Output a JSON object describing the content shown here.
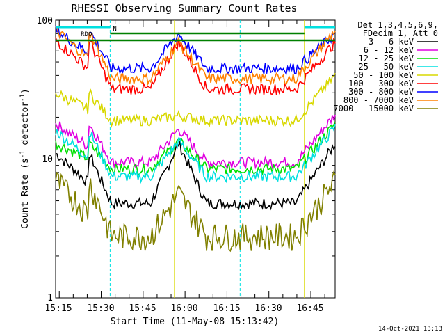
{
  "chart_data": {
    "type": "line",
    "title": "RHESSI Observing Summary Count Rates",
    "xlabel": "Start Time (11-May-08 15:13:42)",
    "ylabel_main": "Count Rate (s",
    "ylabel_sup1": "-1",
    "ylabel_mid": " detector",
    "ylabel_sup2": "-1",
    "ylabel_end": ")",
    "yscale": "log",
    "ylim": [
      1,
      100
    ],
    "xlim_minutes": [
      0,
      100
    ],
    "x_ticks": [
      "15:15",
      "15:30",
      "15:45",
      "16:00",
      "16:15",
      "16:30",
      "16:45"
    ],
    "y_ticks": [
      "1",
      "10",
      "100"
    ],
    "legend_header": [
      "Det 1,3,4,5,6,9,",
      "FDecim 1, Att 0"
    ],
    "legend_position": "right",
    "timestamp": "14-Oct-2021 13:13",
    "flags": {
      "night_label": "N",
      "rdo_label": "RDO"
    },
    "breaks_minutes": [
      19.5,
      42.5,
      66,
      89
    ],
    "series": [
      {
        "name": "3 - 6 keV",
        "color": "#000000",
        "values": [
          11,
          4.8,
          13,
          4.8,
          13
        ]
      },
      {
        "name": "6 - 12 keV",
        "color": "#e000e0",
        "values": [
          18,
          9.5,
          16.5,
          9.5,
          21
        ]
      },
      {
        "name": "12 - 25 keV",
        "color": "#00e000",
        "values": [
          13,
          8.5,
          13.5,
          8.5,
          18
        ]
      },
      {
        "name": "25 - 50 keV",
        "color": "#00e0e0",
        "values": [
          16,
          7.5,
          13.5,
          7.5,
          17
        ]
      },
      {
        "name": "50 - 100 keV",
        "color": "#d8d800",
        "values": [
          30,
          19,
          20.5,
          19,
          40
        ]
      },
      {
        "name": "100 - 300 keV",
        "color": "#ff0000",
        "values": [
          72,
          32,
          70,
          32,
          70
        ]
      },
      {
        "name": "300 - 800 keV",
        "color": "#0000ff",
        "values": [
          85,
          45,
          80,
          45,
          80
        ]
      },
      {
        "name": "800 - 7000 keV",
        "color": "#ff8000",
        "values": [
          85,
          38,
          70,
          38,
          85
        ]
      },
      {
        "name": "7000 - 15000 keV",
        "color": "#808000",
        "values": [
          7,
          2.8,
          5.6,
          2.8,
          7
        ]
      }
    ]
  }
}
